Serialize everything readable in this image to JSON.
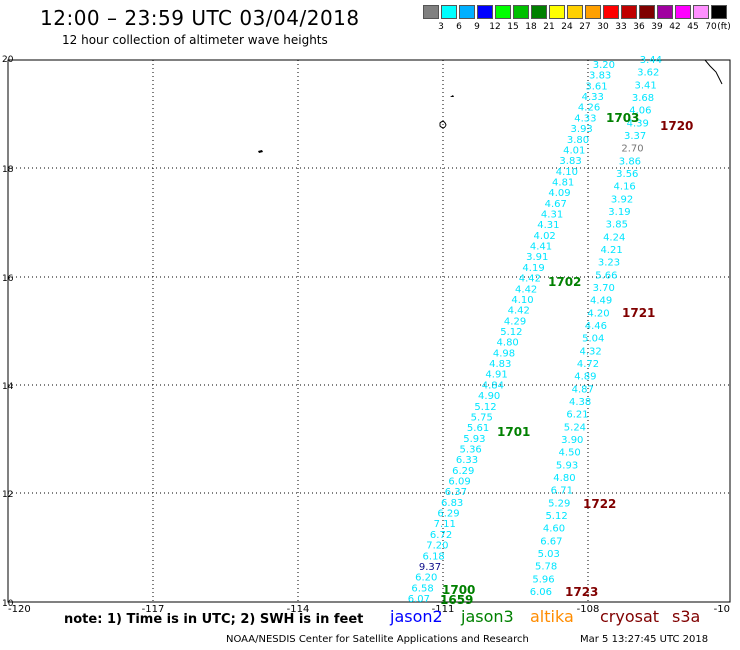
{
  "header": {
    "title": "12:00 – 23:59 UTC 03/04/2018",
    "subtitle": "12 hour collection of altimeter wave heights"
  },
  "scale": {
    "unit": "(ft)",
    "labels": [
      "3",
      "6",
      "9",
      "12",
      "15",
      "18",
      "21",
      "24",
      "27",
      "30",
      "33",
      "36",
      "39",
      "42",
      "45",
      "70"
    ],
    "colors": [
      "#808080",
      "#00ffff",
      "#00b0ff",
      "#0000ff",
      "#00ff00",
      "#00c000",
      "#008000",
      "#ffff00",
      "#ffd000",
      "#ffa000",
      "#ff0000",
      "#c00000",
      "#800000",
      "#a000a0",
      "#ff00ff",
      "#ff90ff",
      "#000000"
    ]
  },
  "axes": {
    "lon_labels": [
      "-120",
      "-117",
      "-114",
      "-111",
      "-108",
      "-10"
    ],
    "lat_labels": [
      "20",
      "18",
      "16",
      "14",
      "12",
      "10"
    ]
  },
  "colors": {
    "jason2": "#0000ff",
    "jason3": "#008000",
    "altika": "#ff8c00",
    "cryosat": "#800000",
    "s3a": "#800000",
    "track": "#00e5ff",
    "low": "#0b0b8a",
    "gray": "#777777"
  },
  "passes": [
    {
      "label": "1703",
      "mission": "jason3",
      "color": "#008000"
    },
    {
      "label": "1720",
      "mission": "cryosat",
      "color": "#800000"
    },
    {
      "label": "1702",
      "mission": "jason3",
      "color": "#008000"
    },
    {
      "label": "1721",
      "mission": "cryosat",
      "color": "#800000"
    },
    {
      "label": "1701",
      "mission": "jason3",
      "color": "#008000"
    },
    {
      "label": "1722",
      "mission": "cryosat",
      "color": "#800000"
    },
    {
      "label": "1700",
      "mission": "jason3",
      "color": "#008000"
    },
    {
      "label": "1659",
      "mission": "jason3",
      "color": "#008000"
    },
    {
      "label": "1723",
      "mission": "cryosat",
      "color": "#800000"
    }
  ],
  "track_west": [
    "3.20",
    "3.83",
    "3.61",
    "4.33",
    "4.26",
    "4.33",
    "3.93",
    "3.80",
    "4.01",
    "3.83",
    "4.10",
    "4.81",
    "4.09",
    "4.67",
    "4.31",
    "4.31",
    "4.02",
    "4.41",
    "3.91",
    "4.19",
    "4.42",
    "4.42",
    "4.10",
    "4.42",
    "4.29",
    "5.12",
    "4.80",
    "4.98",
    "4.83",
    "4.91",
    "4.84",
    "4.90",
    "5.12",
    "5.75",
    "5.61",
    "5.93",
    "5.36",
    "6.33",
    "6.29",
    "6.09",
    "6.37",
    "6.83",
    "6.29",
    "7.11",
    "6.72",
    "7.20",
    "6.18",
    "9.37",
    "6.20",
    "6.58",
    "6.07"
  ],
  "track_east": [
    "3.44",
    "3.62",
    "3.41",
    "3.68",
    "4.06",
    "4.39",
    "3.37",
    "2.70",
    "3.86",
    "3.56",
    "4.16",
    "3.92",
    "3.19",
    "3.85",
    "4.24",
    "4.21",
    "3.23",
    "5.66",
    "3.70",
    "4.49",
    "4.20",
    "4.46",
    "5.04",
    "4.32",
    "4.72",
    "4.89",
    "4.87",
    "4.38",
    "6.21",
    "5.24",
    "3.90",
    "4.50",
    "5.93",
    "4.80",
    "6.71",
    "5.29",
    "5.12",
    "4.60",
    "6.67",
    "5.03",
    "5.78",
    "5.96",
    "6.06"
  ],
  "footer": {
    "note": "note:  1) Time is in UTC;  2) SWH is in feet",
    "missions": [
      "jason2",
      "jason3",
      "altika",
      "cryosat",
      "s3a"
    ],
    "credit": "NOAA/NESDIS Center for Satellite Applications and Research",
    "timestamp": "Mar  5 13:27:45 UTC 2018"
  }
}
